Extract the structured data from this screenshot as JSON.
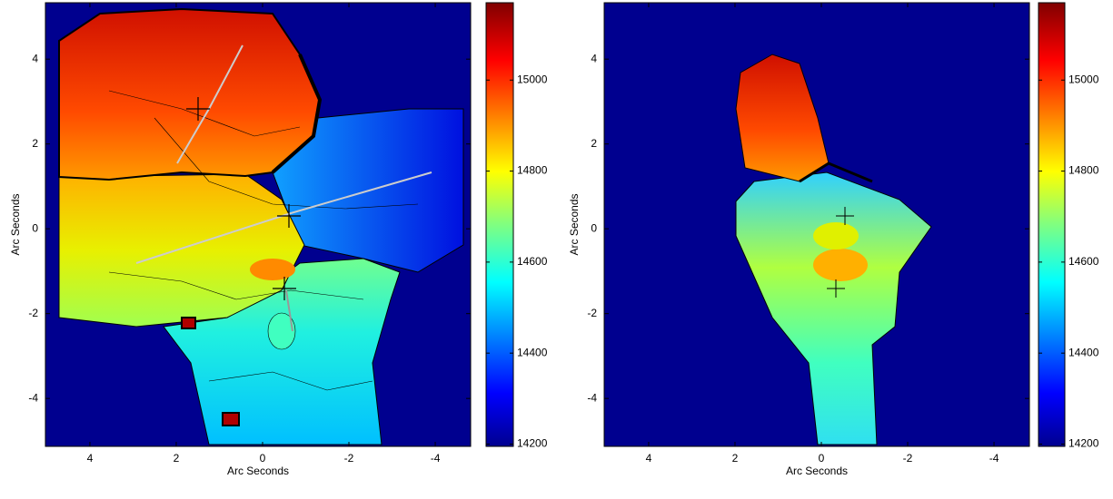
{
  "chart_data": [
    {
      "type": "heatmap",
      "x_label": "Arc Seconds",
      "y_label": "Arc Seconds",
      "xlim": [
        5.03,
        -4.82
      ],
      "ylim": [
        -5.13,
        5.33
      ],
      "xticks": [
        4,
        2,
        0,
        -2,
        -4
      ],
      "yticks": [
        -4,
        -2,
        0,
        2,
        4
      ],
      "clim": [
        14195,
        15170
      ],
      "cticks": [
        14200,
        14400,
        14600,
        14800,
        15000
      ]
    },
    {
      "type": "heatmap",
      "x_label": "Arc Seconds",
      "y_label": "Arc Seconds",
      "xlim": [
        5.03,
        -4.82
      ],
      "ylim": [
        -5.13,
        5.33
      ],
      "xticks": [
        4,
        2,
        0,
        -2,
        -4
      ],
      "yticks": [
        -4,
        -2,
        0,
        2,
        4
      ],
      "clim": [
        14195,
        15170
      ],
      "cticks": [
        14200,
        14400,
        14600,
        14800,
        15000
      ]
    }
  ]
}
